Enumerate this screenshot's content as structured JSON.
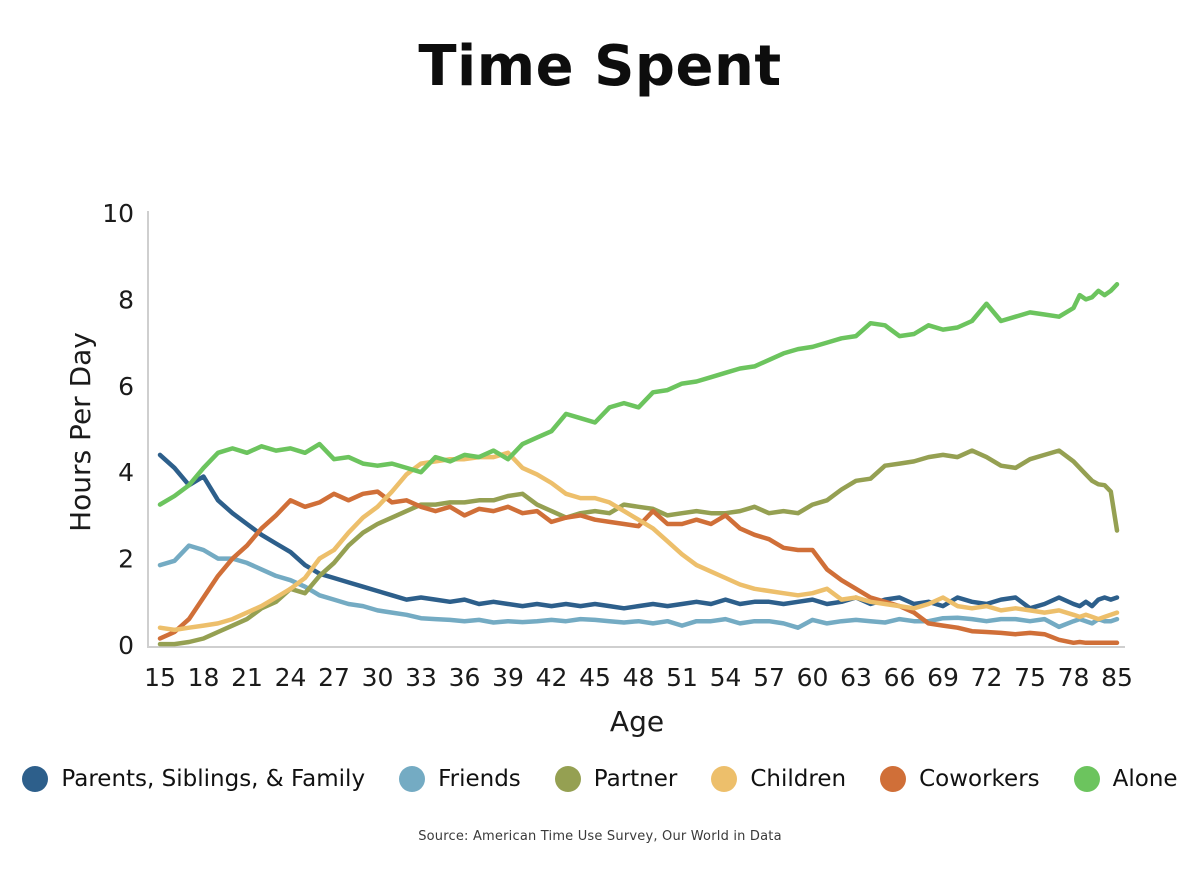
{
  "title": "Time Spent",
  "source": "Source: American Time Use Survey, Our World in Data",
  "chart_data": {
    "type": "line",
    "title": "Time Spent",
    "xlabel": "Age",
    "ylabel": "Hours Per Day",
    "ylim": [
      0,
      10
    ],
    "y_ticks": [
      0,
      2,
      4,
      6,
      8,
      10
    ],
    "x_ticks": [
      15,
      18,
      21,
      24,
      27,
      30,
      33,
      36,
      39,
      42,
      45,
      48,
      51,
      54,
      57,
      60,
      63,
      66,
      69,
      72,
      75,
      78,
      85
    ],
    "grid": false,
    "legend_position": "bottom",
    "axis_color": "#cfcfcf",
    "ages_start": 15,
    "ages_end": 85,
    "series": [
      {
        "name": "Parents, Siblings, & Family",
        "color": "#2d5f8b",
        "values": [
          4.4,
          4.1,
          3.7,
          3.9,
          3.35,
          3.05,
          2.8,
          2.55,
          2.35,
          2.15,
          1.85,
          1.65,
          1.55,
          1.45,
          1.35,
          1.25,
          1.15,
          1.05,
          1.1,
          1.05,
          1.0,
          1.05,
          0.95,
          1.0,
          0.95,
          0.9,
          0.95,
          0.9,
          0.95,
          0.9,
          0.95,
          0.9,
          0.85,
          0.9,
          0.95,
          0.9,
          0.95,
          1.0,
          0.95,
          1.05,
          0.95,
          1.0,
          1.0,
          0.95,
          1.0,
          1.05,
          0.95,
          1.0,
          1.1,
          0.95,
          1.05,
          1.1,
          0.95,
          1.0,
          0.9,
          1.1,
          1.0,
          0.95,
          1.05,
          1.1,
          0.85,
          0.95,
          1.1,
          0.95,
          0.9,
          1.0,
          0.9,
          1.05,
          1.1,
          1.05,
          1.1
        ]
      },
      {
        "name": "Friends",
        "color": "#74abc3",
        "values": [
          1.85,
          1.95,
          2.3,
          2.2,
          2.0,
          2.0,
          1.9,
          1.75,
          1.6,
          1.5,
          1.35,
          1.15,
          1.05,
          0.95,
          0.9,
          0.8,
          0.75,
          0.7,
          0.62,
          0.6,
          0.58,
          0.55,
          0.58,
          0.52,
          0.55,
          0.53,
          0.55,
          0.58,
          0.55,
          0.6,
          0.58,
          0.55,
          0.52,
          0.55,
          0.5,
          0.55,
          0.45,
          0.55,
          0.55,
          0.6,
          0.5,
          0.55,
          0.55,
          0.5,
          0.4,
          0.58,
          0.5,
          0.55,
          0.58,
          0.55,
          0.52,
          0.6,
          0.55,
          0.55,
          0.62,
          0.63,
          0.6,
          0.55,
          0.6,
          0.6,
          0.55,
          0.6,
          0.42,
          0.55,
          0.6,
          0.55,
          0.5,
          0.6,
          0.55,
          0.55,
          0.6
        ]
      },
      {
        "name": "Partner",
        "color": "#95a052",
        "values": [
          0.02,
          0.02,
          0.07,
          0.15,
          0.3,
          0.45,
          0.6,
          0.85,
          1.0,
          1.3,
          1.2,
          1.6,
          1.9,
          2.3,
          2.6,
          2.8,
          2.95,
          3.1,
          3.25,
          3.25,
          3.3,
          3.3,
          3.35,
          3.35,
          3.45,
          3.5,
          3.25,
          3.1,
          2.95,
          3.05,
          3.1,
          3.05,
          3.25,
          3.2,
          3.15,
          3.0,
          3.05,
          3.1,
          3.05,
          3.05,
          3.1,
          3.2,
          3.05,
          3.1,
          3.05,
          3.25,
          3.35,
          3.6,
          3.8,
          3.85,
          4.15,
          4.2,
          4.25,
          4.35,
          4.4,
          4.35,
          4.5,
          4.35,
          4.15,
          4.1,
          4.3,
          4.4,
          4.5,
          4.25,
          4.1,
          3.95,
          3.8,
          3.72,
          3.7,
          3.55,
          2.65
        ]
      },
      {
        "name": "Children",
        "color": "#edbf6b",
        "values": [
          0.4,
          0.35,
          0.4,
          0.45,
          0.5,
          0.6,
          0.75,
          0.9,
          1.1,
          1.3,
          1.55,
          2.0,
          2.2,
          2.6,
          2.95,
          3.2,
          3.55,
          3.95,
          4.2,
          4.25,
          4.3,
          4.3,
          4.35,
          4.35,
          4.45,
          4.1,
          3.95,
          3.75,
          3.5,
          3.4,
          3.4,
          3.3,
          3.1,
          2.9,
          2.7,
          2.4,
          2.1,
          1.85,
          1.7,
          1.55,
          1.4,
          1.3,
          1.25,
          1.2,
          1.15,
          1.2,
          1.3,
          1.05,
          1.1,
          1.0,
          0.95,
          0.9,
          0.85,
          0.95,
          1.1,
          0.9,
          0.85,
          0.9,
          0.8,
          0.85,
          0.8,
          0.75,
          0.8,
          0.7,
          0.65,
          0.7,
          0.65,
          0.6,
          0.65,
          0.7,
          0.75
        ]
      },
      {
        "name": "Coworkers",
        "color": "#d06f38",
        "values": [
          0.15,
          0.3,
          0.6,
          1.1,
          1.6,
          2.0,
          2.3,
          2.7,
          3.0,
          3.35,
          3.2,
          3.3,
          3.5,
          3.35,
          3.5,
          3.55,
          3.3,
          3.35,
          3.2,
          3.1,
          3.2,
          3.0,
          3.15,
          3.1,
          3.2,
          3.05,
          3.1,
          2.85,
          2.95,
          3.0,
          2.9,
          2.85,
          2.8,
          2.75,
          3.1,
          2.8,
          2.8,
          2.9,
          2.8,
          3.0,
          2.7,
          2.55,
          2.45,
          2.25,
          2.2,
          2.2,
          1.75,
          1.5,
          1.3,
          1.1,
          1.0,
          0.9,
          0.75,
          0.5,
          0.45,
          0.4,
          0.32,
          0.3,
          0.28,
          0.25,
          0.28,
          0.25,
          0.12,
          0.05,
          0.07,
          0.05,
          0.05,
          0.05,
          0.05,
          0.05,
          0.05
        ]
      },
      {
        "name": "Alone",
        "color": "#6cc45e",
        "values": [
          3.25,
          3.45,
          3.7,
          4.1,
          4.45,
          4.55,
          4.45,
          4.6,
          4.5,
          4.55,
          4.45,
          4.65,
          4.3,
          4.35,
          4.2,
          4.15,
          4.2,
          4.1,
          4.0,
          4.35,
          4.25,
          4.4,
          4.35,
          4.5,
          4.3,
          4.65,
          4.8,
          4.95,
          5.35,
          5.25,
          5.15,
          5.5,
          5.6,
          5.5,
          5.85,
          5.9,
          6.05,
          6.1,
          6.2,
          6.3,
          6.4,
          6.45,
          6.6,
          6.75,
          6.85,
          6.9,
          7.0,
          7.1,
          7.15,
          7.45,
          7.4,
          7.15,
          7.2,
          7.4,
          7.3,
          7.35,
          7.5,
          7.9,
          7.5,
          7.6,
          7.7,
          7.65,
          7.6,
          7.8,
          8.1,
          8.0,
          8.05,
          8.2,
          8.1,
          8.2,
          8.35
        ]
      }
    ]
  }
}
